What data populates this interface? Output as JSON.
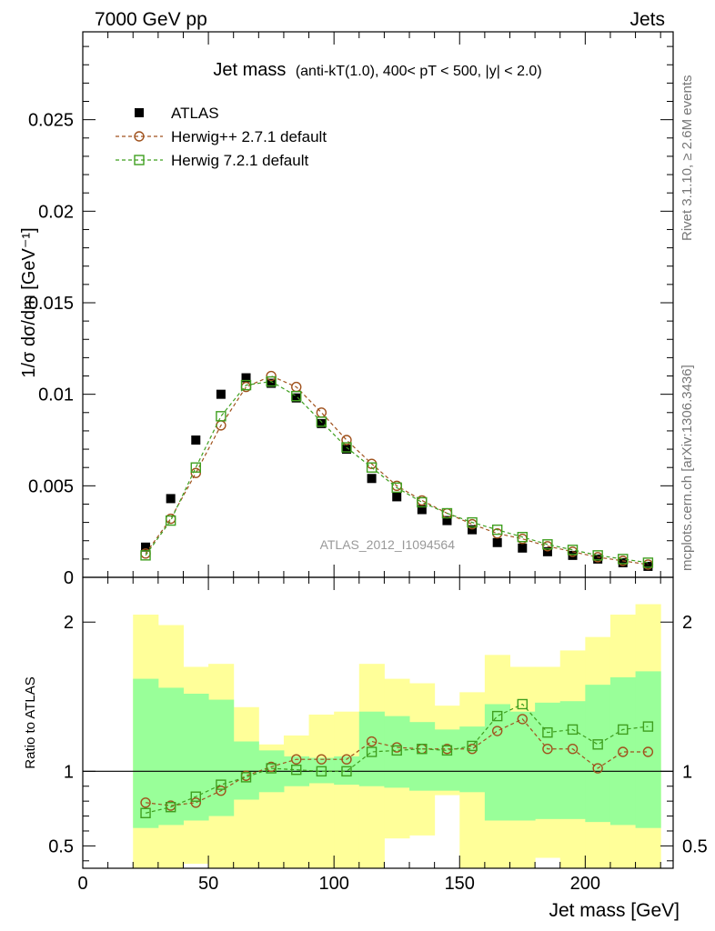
{
  "header": {
    "energy_label": "7000 GeV pp",
    "process_label": "Jets"
  },
  "side_labels": {
    "rivet": "Rivet 3.1.10, ≥ 2.6M events",
    "mcplots": "mcplots.cern.ch [arXiv:1306.3436]"
  },
  "chart_data": [
    {
      "type": "scatter",
      "title": "Jet mass (anti-kT(1.0), 400< pT < 500, |y| < 2.0)",
      "title_main": "Jet mass",
      "title_sub": "(anti-kT(1.0), 400< pT < 500, |y| < 2.0)",
      "watermark": "ATLAS_2012_I1094564",
      "xlabel": "Jet mass [GeV]",
      "ylabel": "1/σ dσ/dm [GeV⁻¹]",
      "xlim": [
        0,
        235
      ],
      "ylim": [
        0,
        0.0298
      ],
      "x_ticks": [
        0,
        50,
        100,
        150,
        200
      ],
      "x_tick_labels": [
        "0",
        "50",
        "100",
        "150",
        "200"
      ],
      "y_ticks": [
        0,
        0.005,
        0.01,
        0.015,
        0.02,
        0.025
      ],
      "y_tick_labels": [
        "0",
        "0.005",
        "0.01",
        "0.015",
        "0.02",
        "0.025"
      ],
      "legend_position": "top-left",
      "grid": false,
      "x": [
        25,
        35,
        45,
        55,
        65,
        75,
        85,
        95,
        105,
        115,
        125,
        135,
        145,
        155,
        165,
        175,
        185,
        195,
        205,
        215,
        225
      ],
      "series": [
        {
          "name": "ATLAS",
          "marker": "filled-square",
          "color": "#000000",
          "values": [
            0.00165,
            0.0043,
            0.0075,
            0.01,
            0.0109,
            0.0106,
            0.0098,
            0.0084,
            0.007,
            0.0054,
            0.0044,
            0.0037,
            0.0031,
            0.0026,
            0.0019,
            0.0016,
            0.0014,
            0.0012,
            0.001,
            0.0008,
            0.0006
          ]
        },
        {
          "name": "Herwig++ 2.7.1 default",
          "marker": "open-circle",
          "color": "#a0521d",
          "values": [
            0.0013,
            0.0032,
            0.0057,
            0.0083,
            0.0104,
            0.011,
            0.0104,
            0.009,
            0.0075,
            0.0062,
            0.005,
            0.0042,
            0.0035,
            0.0029,
            0.0024,
            0.0021,
            0.0017,
            0.0014,
            0.0011,
            0.0009,
            0.0007
          ]
        },
        {
          "name": "Herwig 7.2.1 default",
          "marker": "open-square",
          "color": "#3f9f1f",
          "values": [
            0.0012,
            0.0031,
            0.006,
            0.0088,
            0.0105,
            0.0107,
            0.0099,
            0.0085,
            0.0071,
            0.006,
            0.0049,
            0.0041,
            0.0035,
            0.003,
            0.0026,
            0.0022,
            0.0018,
            0.0015,
            0.0012,
            0.001,
            0.0008
          ]
        }
      ]
    },
    {
      "type": "scatter",
      "ylabel": "Ratio to ATLAS",
      "xlim": [
        0,
        235
      ],
      "ylim": [
        0.35,
        2.3
      ],
      "y_ticks": [
        0.5,
        1,
        2
      ],
      "y_tick_labels": [
        "0.5",
        "1",
        "2"
      ],
      "reference_line": 1,
      "band_edges": [
        20,
        30,
        40,
        50,
        60,
        70,
        80,
        90,
        100,
        110,
        120,
        130,
        140,
        150,
        160,
        170,
        180,
        190,
        200,
        210,
        220,
        230
      ],
      "bands": {
        "inner": {
          "color": "#99ff99",
          "lower": [
            0.62,
            0.64,
            0.67,
            0.7,
            0.81,
            0.86,
            0.9,
            0.92,
            0.91,
            0.9,
            0.89,
            0.87,
            0.87,
            0.86,
            0.67,
            0.67,
            0.68,
            0.68,
            0.66,
            0.64,
            0.62
          ],
          "upper": [
            1.62,
            1.56,
            1.52,
            1.48,
            1.2,
            1.14,
            1.1,
            1.09,
            1.1,
            1.4,
            1.37,
            1.33,
            1.28,
            1.3,
            1.45,
            1.4,
            1.46,
            1.47,
            1.58,
            1.63,
            1.67
          ]
        },
        "outer": {
          "color": "#ffff99",
          "lower": [
            0.35,
            0.35,
            0.38,
            0.35,
            0.35,
            0.35,
            0.35,
            0.35,
            0.35,
            0.35,
            0.55,
            0.57,
            0.84,
            0.35,
            0.35,
            0.35,
            0.42,
            0.35,
            0.35,
            0.35,
            0.35
          ],
          "upper": [
            2.05,
            1.98,
            1.7,
            1.72,
            1.43,
            1.18,
            1.24,
            1.38,
            1.4,
            1.72,
            1.62,
            1.59,
            1.44,
            1.53,
            1.78,
            1.7,
            1.7,
            1.81,
            1.9,
            2.05,
            2.12
          ]
        }
      },
      "series": [
        {
          "name": "Herwig++ 2.7.1 default",
          "marker": "open-circle",
          "color": "#a0521d",
          "values": [
            0.79,
            0.77,
            0.79,
            0.87,
            0.97,
            1.03,
            1.08,
            1.08,
            1.08,
            1.2,
            1.16,
            1.15,
            1.15,
            1.15,
            1.27,
            1.35,
            1.15,
            1.15,
            1.02,
            1.13,
            1.13
          ]
        },
        {
          "name": "Herwig 7.2.1 default",
          "marker": "open-square",
          "color": "#3f9f1f",
          "values": [
            0.72,
            0.76,
            0.83,
            0.91,
            0.96,
            1.02,
            1.01,
            1.0,
            1.0,
            1.13,
            1.14,
            1.15,
            1.14,
            1.17,
            1.37,
            1.45,
            1.26,
            1.28,
            1.18,
            1.28,
            1.3
          ]
        }
      ]
    }
  ]
}
